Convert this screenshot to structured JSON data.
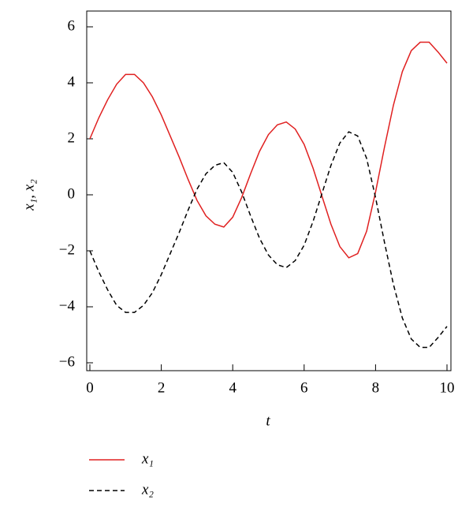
{
  "chart_data": {
    "type": "line",
    "x_label": "t",
    "y_label": "x₁, x₂",
    "x": [
      0,
      0.25,
      0.5,
      0.75,
      1,
      1.25,
      1.5,
      1.75,
      2,
      2.25,
      2.5,
      2.75,
      3,
      3.25,
      3.5,
      3.75,
      4,
      4.25,
      4.5,
      4.75,
      5,
      5.25,
      5.5,
      5.75,
      6,
      6.25,
      6.5,
      6.75,
      7,
      7.25,
      7.5,
      7.75,
      8,
      8.25,
      8.5,
      8.75,
      9,
      9.25,
      9.5,
      9.75,
      10
    ],
    "series": [
      {
        "name": "x₁",
        "color": "#e02020",
        "dash": false,
        "values": [
          2.0,
          2.75,
          3.4,
          3.95,
          4.3,
          4.3,
          4.0,
          3.5,
          2.85,
          2.1,
          1.35,
          0.55,
          -0.2,
          -0.75,
          -1.05,
          -1.15,
          -0.8,
          -0.1,
          0.75,
          1.55,
          2.15,
          2.5,
          2.6,
          2.35,
          1.8,
          0.95,
          -0.05,
          -1.05,
          -1.85,
          -2.25,
          -2.1,
          -1.3,
          0.1,
          1.7,
          3.2,
          4.4,
          5.15,
          5.45,
          5.45,
          5.1,
          4.7
        ]
      },
      {
        "name": "x₂",
        "color": "#000000",
        "dash": true,
        "values": [
          -2.0,
          -2.75,
          -3.4,
          -3.95,
          -4.2,
          -4.2,
          -3.95,
          -3.5,
          -2.85,
          -2.1,
          -1.35,
          -0.55,
          0.2,
          0.75,
          1.05,
          1.15,
          0.8,
          0.1,
          -0.75,
          -1.55,
          -2.15,
          -2.5,
          -2.6,
          -2.35,
          -1.8,
          -0.95,
          0.05,
          1.05,
          1.85,
          2.25,
          2.1,
          1.3,
          -0.1,
          -1.7,
          -3.2,
          -4.4,
          -5.15,
          -5.45,
          -5.45,
          -5.1,
          -4.7
        ]
      }
    ],
    "xlim": [
      0,
      10
    ],
    "xticks": [
      0,
      2,
      4,
      6,
      8,
      10
    ],
    "ylim": [
      -6,
      6
    ],
    "yticks": [
      {
        "value": -6,
        "label": "−6"
      },
      {
        "value": -4,
        "label": "−4"
      },
      {
        "value": -2,
        "label": "−2"
      },
      0,
      2,
      4,
      6
    ]
  }
}
